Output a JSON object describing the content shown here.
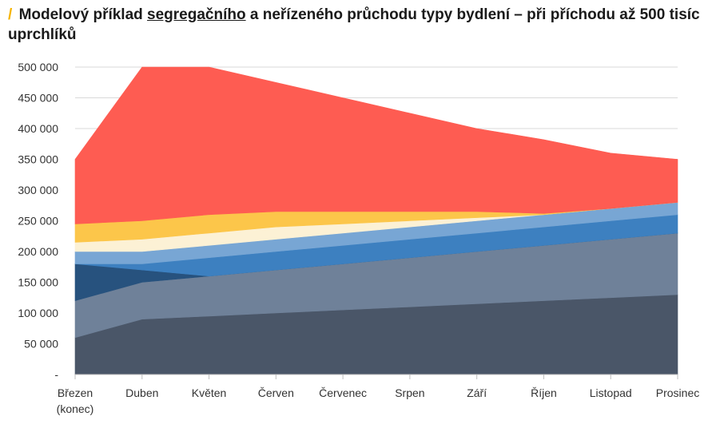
{
  "title": {
    "slash": "/",
    "before": "Modelový příklad",
    "underlined": "segregačního",
    "after": "a neřízeného průchodu typy bydlení – při příchodu až 500 tisíc uprchlíků"
  },
  "chart_data": {
    "type": "area",
    "stacked": true,
    "categories": [
      "Březen (konec)",
      "Duben",
      "Květen",
      "Červen",
      "Červenec",
      "Srpen",
      "Září",
      "Říjen",
      "Listopad",
      "Prosinec"
    ],
    "category_lines": [
      [
        "Březen",
        "(konec)"
      ],
      [
        "Duben"
      ],
      [
        "Květen"
      ],
      [
        "Červen"
      ],
      [
        "Červenec"
      ],
      [
        "Srpen"
      ],
      [
        "Září"
      ],
      [
        "Říjen"
      ],
      [
        "Listopad"
      ],
      [
        "Prosinec"
      ]
    ],
    "y_ticks": [
      "-",
      "50 000",
      "100 000",
      "150 000",
      "200 000",
      "250 000",
      "300 000",
      "350 000",
      "400 000",
      "450 000",
      "500 000"
    ],
    "ylim": [
      0,
      500000
    ],
    "grid": true,
    "series": [
      {
        "color": "#4a5668",
        "values": [
          60000,
          90000,
          95000,
          100000,
          105000,
          110000,
          115000,
          120000,
          125000,
          130000
        ]
      },
      {
        "color": "#6f8199",
        "values": [
          60000,
          60000,
          65000,
          70000,
          75000,
          80000,
          85000,
          90000,
          95000,
          100000
        ]
      },
      {
        "color": "#27527e",
        "values": [
          60000,
          20000,
          0,
          0,
          0,
          0,
          0,
          0,
          0,
          0
        ]
      },
      {
        "color": "#3d80c0",
        "values": [
          0,
          10000,
          30000,
          30000,
          30000,
          30000,
          30000,
          30000,
          30000,
          30000
        ]
      },
      {
        "color": "#78a6d4",
        "values": [
          20000,
          20000,
          20000,
          20000,
          20000,
          20000,
          20000,
          20000,
          20000,
          20000
        ]
      },
      {
        "color": "#fcf1d5",
        "values": [
          15000,
          20000,
          20000,
          20000,
          15000,
          10000,
          5000,
          0,
          0,
          0
        ]
      },
      {
        "color": "#fcc64a",
        "values": [
          30000,
          30000,
          30000,
          25000,
          20000,
          15000,
          10000,
          2000,
          0,
          0
        ]
      },
      {
        "color": "#fe5c52",
        "values": [
          105000,
          250000,
          240000,
          210000,
          185000,
          160000,
          135000,
          120000,
          90000,
          70000
        ]
      }
    ]
  }
}
